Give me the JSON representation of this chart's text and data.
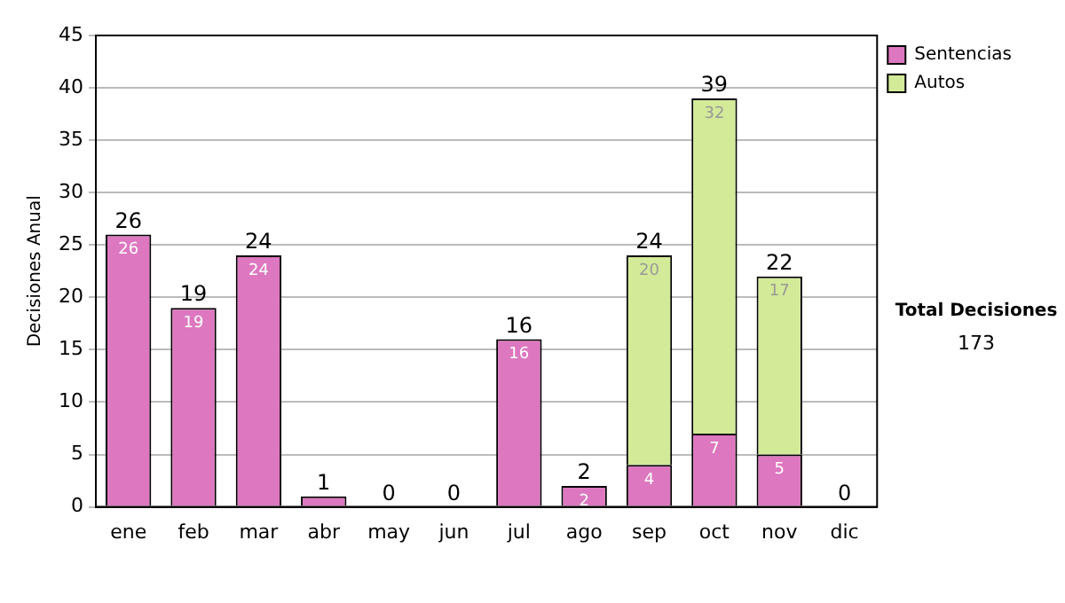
{
  "chart_data": {
    "type": "bar",
    "stacked": true,
    "ylabel": "Decisiones Anual",
    "categories": [
      "ene",
      "feb",
      "mar",
      "abr",
      "may",
      "jun",
      "jul",
      "ago",
      "sep",
      "oct",
      "nov",
      "dic"
    ],
    "series": [
      {
        "name": "Sentencias",
        "color": "#dd77bf",
        "values": [
          26,
          19,
          24,
          1,
          0,
          0,
          16,
          2,
          4,
          7,
          5,
          0
        ],
        "value_labels": [
          "26",
          "19",
          "24",
          null,
          null,
          null,
          "16",
          "2",
          "4",
          "7",
          "5",
          null
        ]
      },
      {
        "name": "Autos",
        "color": "#d3ea98",
        "values": [
          0,
          0,
          0,
          0,
          0,
          0,
          0,
          0,
          20,
          32,
          17,
          0
        ],
        "value_labels": [
          null,
          null,
          null,
          null,
          null,
          null,
          null,
          null,
          "20",
          "32",
          "17",
          null
        ]
      }
    ],
    "totals": [
      "26",
      "19",
      "24",
      "1",
      "0",
      "0",
      "16",
      "2",
      "24",
      "39",
      "22",
      "0"
    ],
    "ylim": [
      0,
      45
    ],
    "yticks": [
      0,
      5,
      10,
      15,
      20,
      25,
      30,
      35,
      40,
      45
    ],
    "grid": "y",
    "legend": "right",
    "annotations": [
      "Total Decisiones",
      "173"
    ]
  }
}
